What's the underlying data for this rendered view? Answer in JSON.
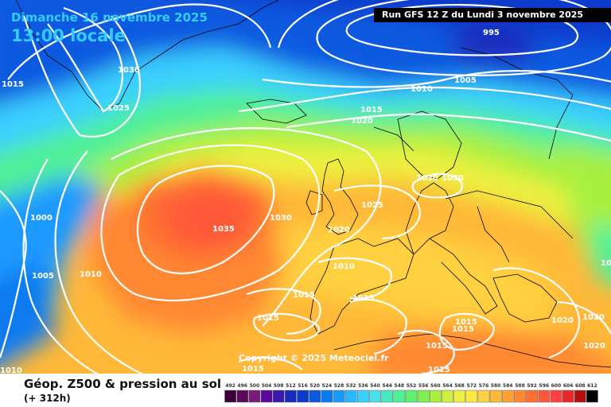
{
  "header": {
    "valid_date": "Dimanche 16 novembre 2025",
    "local_time": "13:00 locale",
    "run": "Run GFS 12 Z du Lundi 3 novembre 2025"
  },
  "footer": {
    "parameter": "Géop. Z500 & pression au sol",
    "lead_time": "(+ 312h)",
    "copyright": "Copyright © 2025 Meteociel.fr"
  },
  "legend": {
    "values": [
      "492",
      "496",
      "500",
      "504",
      "508",
      "512",
      "516",
      "520",
      "524",
      "528",
      "532",
      "536",
      "540",
      "544",
      "548",
      "552",
      "556",
      "560",
      "564",
      "568",
      "572",
      "576",
      "580",
      "584",
      "588",
      "592",
      "596",
      "600",
      "604",
      "608",
      "612"
    ],
    "colors": [
      "#3a003a",
      "#5a0a5a",
      "#7a1a7a",
      "#5a0a9a",
      "#3a1aaa",
      "#1a2abb",
      "#0a3acc",
      "#0a5ae0",
      "#0a7af0",
      "#1a9aff",
      "#2ab8ff",
      "#3ad0ff",
      "#4ae0e8",
      "#4ae8c0",
      "#50f098",
      "#60f070",
      "#80f050",
      "#a8f040",
      "#d0f040",
      "#eef040",
      "#ffe840",
      "#ffd040",
      "#ffb838",
      "#ffa030",
      "#ff8830",
      "#ff7030",
      "#ff5838",
      "#ff4040",
      "#e82828",
      "#b01010",
      "#000000"
    ]
  },
  "isobars": [
    {
      "value": "995"
    },
    {
      "value": "1005"
    },
    {
      "value": "1010"
    },
    {
      "value": "1015"
    },
    {
      "value": "1020"
    },
    {
      "value": "1030"
    },
    {
      "value": "1025"
    },
    {
      "value": "1015"
    },
    {
      "value": "1000"
    },
    {
      "value": "1005"
    },
    {
      "value": "1010"
    },
    {
      "value": "1035"
    },
    {
      "value": "1030"
    },
    {
      "value": "1025"
    },
    {
      "value": "1020"
    },
    {
      "value": "1030"
    },
    {
      "value": "1030"
    },
    {
      "value": "1010"
    },
    {
      "value": "1015"
    },
    {
      "value": "1015"
    },
    {
      "value": "1015"
    },
    {
      "value": "1015"
    },
    {
      "value": "1015"
    },
    {
      "value": "1015"
    },
    {
      "value": "1020"
    },
    {
      "value": "1020"
    },
    {
      "value": "1020"
    },
    {
      "value": "1015"
    },
    {
      "value": "1015"
    },
    {
      "value": "1010"
    },
    {
      "value": "1015"
    }
  ]
}
